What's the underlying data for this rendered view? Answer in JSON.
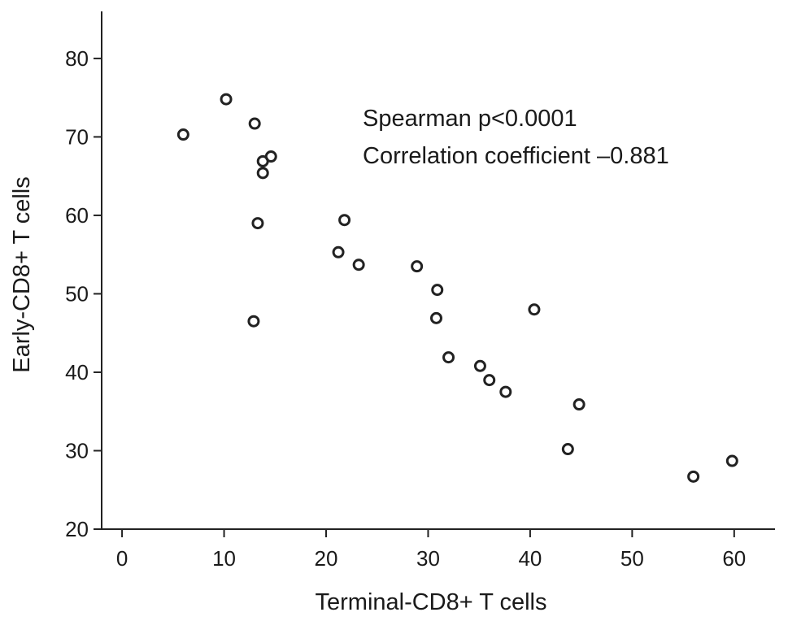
{
  "chart_data": {
    "type": "scatter",
    "title": "",
    "xlabel": "Terminal-CD8+ T cells",
    "ylabel": "Early-CD8+ T cells",
    "xlim": [
      -2,
      64
    ],
    "ylim": [
      20,
      86
    ],
    "x_ticks": [
      0,
      10,
      20,
      30,
      40,
      50,
      60
    ],
    "y_ticks": [
      20,
      30,
      40,
      50,
      60,
      70,
      80
    ],
    "grid": false,
    "legend": null,
    "annotations": [
      "Spearman p<0.0001",
      "Correlation coefficient –0.881"
    ],
    "points": [
      {
        "x": 6.0,
        "y": 70.3
      },
      {
        "x": 10.2,
        "y": 74.8
      },
      {
        "x": 13.0,
        "y": 71.7
      },
      {
        "x": 13.8,
        "y": 66.9
      },
      {
        "x": 14.6,
        "y": 67.5
      },
      {
        "x": 13.8,
        "y": 65.4
      },
      {
        "x": 13.3,
        "y": 59.0
      },
      {
        "x": 12.9,
        "y": 46.5
      },
      {
        "x": 21.8,
        "y": 59.4
      },
      {
        "x": 21.2,
        "y": 55.3
      },
      {
        "x": 23.2,
        "y": 53.7
      },
      {
        "x": 28.9,
        "y": 53.5
      },
      {
        "x": 30.9,
        "y": 50.5
      },
      {
        "x": 30.8,
        "y": 46.9
      },
      {
        "x": 32.0,
        "y": 41.9
      },
      {
        "x": 35.1,
        "y": 40.8
      },
      {
        "x": 36.0,
        "y": 39.0
      },
      {
        "x": 37.6,
        "y": 37.5
      },
      {
        "x": 40.4,
        "y": 48.0
      },
      {
        "x": 44.8,
        "y": 35.9
      },
      {
        "x": 43.7,
        "y": 30.2
      },
      {
        "x": 56.0,
        "y": 26.7
      },
      {
        "x": 59.8,
        "y": 28.7
      }
    ]
  }
}
